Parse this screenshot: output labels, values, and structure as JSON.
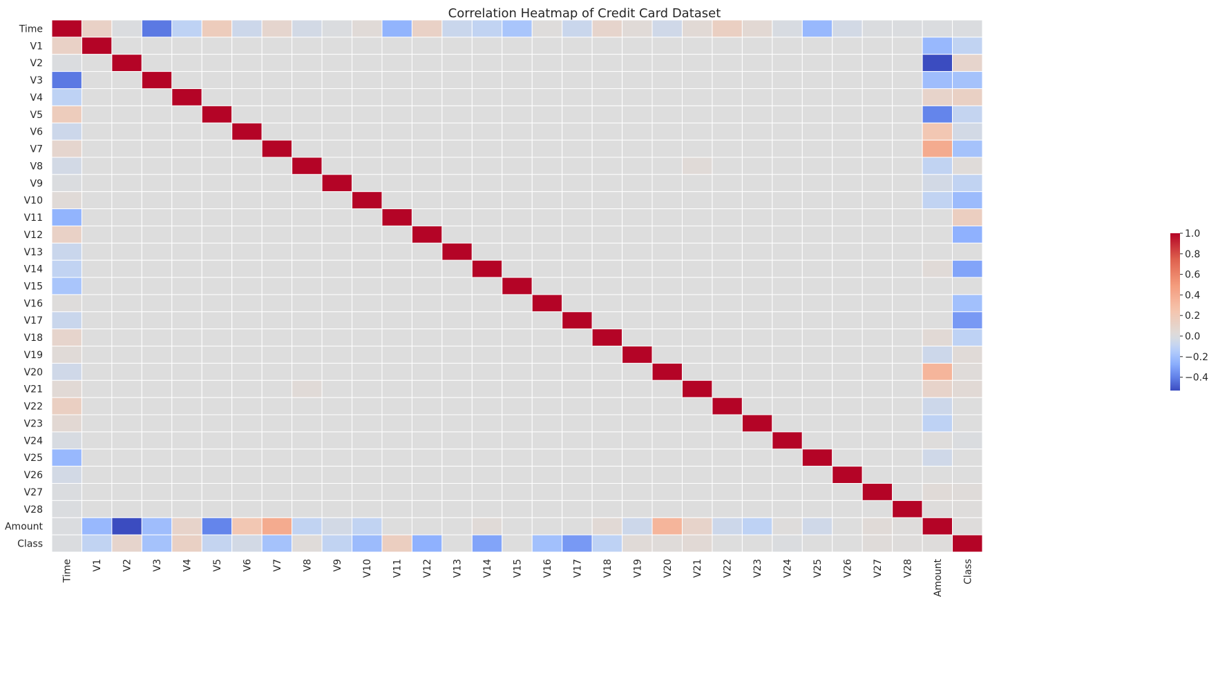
{
  "chart_data": {
    "type": "heatmap",
    "title": "Correlation Heatmap of Credit Card Dataset",
    "labels": [
      "Time",
      "V1",
      "V2",
      "V3",
      "V4",
      "V5",
      "V6",
      "V7",
      "V8",
      "V9",
      "V10",
      "V11",
      "V12",
      "V13",
      "V14",
      "V15",
      "V16",
      "V17",
      "V18",
      "V19",
      "V20",
      "V21",
      "V22",
      "V23",
      "V24",
      "V25",
      "V26",
      "V27",
      "V28",
      "Amount",
      "Class"
    ],
    "colormap": "coolwarm",
    "vmin": -0.53,
    "vmax": 1.0,
    "colorbar_ticks": [
      1.0,
      0.8,
      0.6,
      0.4,
      0.2,
      0.0,
      -0.2,
      -0.4
    ],
    "colorbar_tick_labels": [
      "1.0",
      "0.8",
      "0.6",
      "0.4",
      "0.2",
      "0.0",
      "−0.2",
      "−0.4"
    ],
    "grid_line_color": "#ffffff",
    "off_diagonal_correlations": {
      "Time": [
        [
          "V1",
          0.12
        ],
        [
          "V2",
          -0.01
        ],
        [
          "V3",
          -0.42
        ],
        [
          "V4",
          -0.11
        ],
        [
          "V5",
          0.17
        ],
        [
          "V6",
          -0.06
        ],
        [
          "V7",
          0.08
        ],
        [
          "V8",
          -0.04
        ],
        [
          "V9",
          -0.01
        ],
        [
          "V10",
          0.03
        ],
        [
          "V11",
          -0.25
        ],
        [
          "V12",
          0.12
        ],
        [
          "V13",
          -0.07
        ],
        [
          "V14",
          -0.1
        ],
        [
          "V15",
          -0.18
        ],
        [
          "V16",
          0.01
        ],
        [
          "V17",
          -0.07
        ],
        [
          "V18",
          0.09
        ],
        [
          "V19",
          0.03
        ],
        [
          "V20",
          -0.05
        ],
        [
          "V21",
          0.04
        ],
        [
          "V22",
          0.14
        ],
        [
          "V23",
          0.05
        ],
        [
          "V24",
          -0.02
        ],
        [
          "V25",
          -0.23
        ],
        [
          "V26",
          -0.04
        ],
        [
          "V27",
          -0.01
        ],
        [
          "V28",
          -0.01
        ],
        [
          "Amount",
          -0.01
        ],
        [
          "Class",
          -0.01
        ]
      ],
      "V1": [
        [
          "Amount",
          -0.23
        ],
        [
          "Class",
          -0.1
        ]
      ],
      "V2": [
        [
          "Amount",
          -0.53
        ],
        [
          "Class",
          0.09
        ]
      ],
      "V3": [
        [
          "Amount",
          -0.21
        ],
        [
          "Class",
          -0.19
        ]
      ],
      "V4": [
        [
          "Amount",
          0.1
        ],
        [
          "Class",
          0.13
        ]
      ],
      "V5": [
        [
          "Amount",
          -0.39
        ],
        [
          "Class",
          -0.09
        ]
      ],
      "V6": [
        [
          "Amount",
          0.22
        ],
        [
          "Class",
          -0.04
        ]
      ],
      "V7": [
        [
          "Amount",
          0.4
        ],
        [
          "Class",
          -0.19
        ]
      ],
      "V8": [
        [
          "V21",
          0.03
        ],
        [
          "Amount",
          -0.1
        ],
        [
          "Class",
          0.02
        ]
      ],
      "V9": [
        [
          "Amount",
          -0.04
        ],
        [
          "Class",
          -0.1
        ]
      ],
      "V10": [
        [
          "Amount",
          -0.1
        ],
        [
          "Class",
          -0.22
        ]
      ],
      "V11": [
        [
          "Class",
          0.15
        ]
      ],
      "V12": [
        [
          "Class",
          -0.26
        ]
      ],
      "V13": [
        [
          "Class",
          -0.0
        ]
      ],
      "V14": [
        [
          "Amount",
          0.03
        ],
        [
          "Class",
          -0.3
        ]
      ],
      "V15": [
        [
          "Class",
          -0.0
        ]
      ],
      "V16": [
        [
          "Class",
          -0.2
        ]
      ],
      "V17": [
        [
          "Class",
          -0.33
        ]
      ],
      "V18": [
        [
          "Amount",
          0.04
        ],
        [
          "Class",
          -0.11
        ]
      ],
      "V19": [
        [
          "Amount",
          -0.06
        ],
        [
          "Class",
          0.03
        ]
      ],
      "V20": [
        [
          "Amount",
          0.34
        ],
        [
          "Class",
          0.02
        ]
      ],
      "V21": [
        [
          "Amount",
          0.1
        ],
        [
          "Class",
          0.04
        ]
      ],
      "V22": [
        [
          "Amount",
          -0.06
        ],
        [
          "Class",
          0.0
        ]
      ],
      "V23": [
        [
          "Amount",
          -0.11
        ],
        [
          "Class",
          -0.0
        ]
      ],
      "V24": [
        [
          "Amount",
          0.01
        ],
        [
          "Class",
          -0.01
        ]
      ],
      "V25": [
        [
          "Amount",
          -0.05
        ],
        [
          "Class",
          0.0
        ]
      ],
      "V26": [
        [
          "Amount",
          -0.0
        ],
        [
          "Class",
          0.0
        ]
      ],
      "V27": [
        [
          "Amount",
          0.03
        ],
        [
          "Class",
          0.02
        ]
      ],
      "V28": [
        [
          "Amount",
          0.01
        ],
        [
          "Class",
          0.01
        ]
      ],
      "Amount": [
        [
          "Class",
          0.01
        ]
      ]
    }
  }
}
